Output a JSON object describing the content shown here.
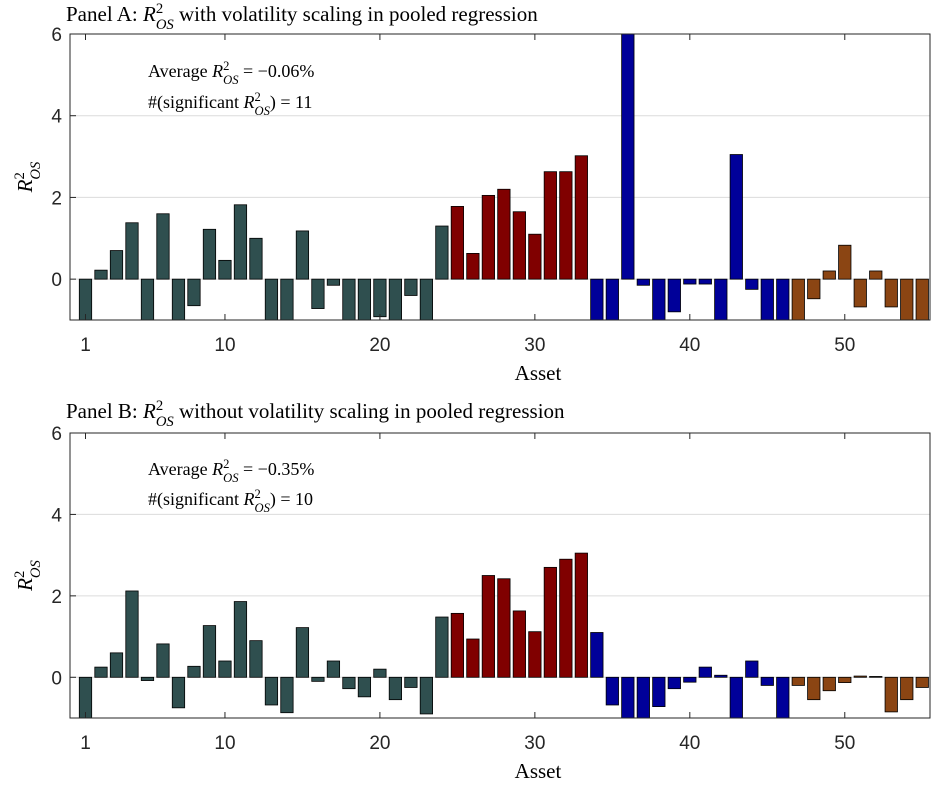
{
  "chart_data": [
    {
      "type": "bar",
      "title": [
        {
          "t": "Panel A: "
        },
        {
          "t": "R",
          "style": "italic"
        },
        {
          "t": "2",
          "pos": "sup"
        },
        {
          "t": "OS",
          "pos": "sub",
          "style": "italic"
        },
        {
          "t": " with volatility scaling in pooled regression"
        }
      ],
      "annotations": [
        [
          {
            "t": "Average "
          },
          {
            "t": "R",
            "style": "italic"
          },
          {
            "t": "2",
            "pos": "sup"
          },
          {
            "t": "OS",
            "pos": "sub",
            "style": "italic"
          },
          {
            "t": " = −0.06%"
          }
        ],
        [
          {
            "t": "#(significant "
          },
          {
            "t": "R",
            "style": "italic"
          },
          {
            "t": "2",
            "pos": "sup"
          },
          {
            "t": "OS",
            "pos": "sub",
            "style": "italic"
          },
          {
            "t": ") = 11"
          }
        ]
      ],
      "ylabel": [
        {
          "t": "R",
          "style": "italic"
        },
        {
          "t": "2",
          "pos": "sup"
        },
        {
          "t": "OS",
          "pos": "sub",
          "style": "italic"
        }
      ],
      "xlabel": "Asset",
      "xlim": [
        0,
        55.5
      ],
      "xticks": [
        1,
        10,
        20,
        30,
        40,
        50
      ],
      "ylim": [
        -1,
        6
      ],
      "yticks": [
        0,
        2,
        4,
        6
      ],
      "grid": true,
      "series": [
        {
          "color": "#2f4f4f",
          "x": [
            1,
            2,
            3,
            4,
            5,
            6,
            7,
            8,
            9,
            10,
            11,
            12,
            13,
            14,
            15,
            16,
            17,
            18,
            19,
            20,
            21,
            22,
            23,
            24
          ],
          "values": [
            -1,
            0.22,
            0.7,
            1.38,
            -1,
            1.6,
            -1,
            -0.65,
            1.22,
            0.46,
            1.82,
            1.0,
            -1,
            -1,
            1.18,
            -0.72,
            -0.15,
            -1,
            -1,
            -0.92,
            -1,
            -0.4,
            -1,
            1.3
          ]
        },
        {
          "color": "#800000",
          "x": [
            25,
            26,
            27,
            28,
            29,
            30,
            31,
            32,
            33
          ],
          "values": [
            1.78,
            0.63,
            2.05,
            2.2,
            1.65,
            1.1,
            2.63,
            2.63,
            3.02
          ]
        },
        {
          "color": "#000099",
          "x": [
            34,
            35,
            36,
            37,
            38,
            39,
            40,
            41,
            42,
            43,
            44,
            45,
            46
          ],
          "values": [
            -1,
            -1,
            6,
            -0.15,
            -1,
            -0.8,
            -0.12,
            -0.12,
            -1,
            3.05,
            -0.25,
            -1,
            -1
          ]
        },
        {
          "color": "#8b4513",
          "x": [
            47,
            48,
            49,
            50,
            51,
            52,
            53,
            54,
            55
          ],
          "values": [
            -1,
            -0.48,
            0.2,
            0.83,
            -0.68,
            0.2,
            -0.68,
            -1,
            -1
          ]
        }
      ]
    },
    {
      "type": "bar",
      "title": [
        {
          "t": "Panel B: "
        },
        {
          "t": "R",
          "style": "italic"
        },
        {
          "t": "2",
          "pos": "sup"
        },
        {
          "t": "OS",
          "pos": "sub",
          "style": "italic"
        },
        {
          "t": " without volatility scaling in pooled regression"
        }
      ],
      "annotations": [
        [
          {
            "t": "Average "
          },
          {
            "t": "R",
            "style": "italic"
          },
          {
            "t": "2",
            "pos": "sup"
          },
          {
            "t": "OS",
            "pos": "sub",
            "style": "italic"
          },
          {
            "t": " = −0.35%"
          }
        ],
        [
          {
            "t": "#(significant "
          },
          {
            "t": "R",
            "style": "italic"
          },
          {
            "t": "2",
            "pos": "sup"
          },
          {
            "t": "OS",
            "pos": "sub",
            "style": "italic"
          },
          {
            "t": ") = 10"
          }
        ]
      ],
      "ylabel": [
        {
          "t": "R",
          "style": "italic"
        },
        {
          "t": "2",
          "pos": "sup"
        },
        {
          "t": "OS",
          "pos": "sub",
          "style": "italic"
        }
      ],
      "xlabel": "Asset",
      "xlim": [
        0,
        55.5
      ],
      "xticks": [
        1,
        10,
        20,
        30,
        40,
        50
      ],
      "ylim": [
        -1,
        6
      ],
      "yticks": [
        0,
        2,
        4,
        6
      ],
      "grid": true,
      "series": [
        {
          "color": "#2f4f4f",
          "x": [
            1,
            2,
            3,
            4,
            5,
            6,
            7,
            8,
            9,
            10,
            11,
            12,
            13,
            14,
            15,
            16,
            17,
            18,
            19,
            20,
            21,
            22,
            23,
            24
          ],
          "values": [
            -1,
            0.25,
            0.6,
            2.12,
            -0.08,
            0.82,
            -0.75,
            0.27,
            1.27,
            0.4,
            1.86,
            0.9,
            -0.68,
            -0.87,
            1.22,
            -0.1,
            0.4,
            -0.28,
            -0.48,
            0.2,
            -0.55,
            -0.25,
            -0.9,
            1.48
          ]
        },
        {
          "color": "#800000",
          "x": [
            25,
            26,
            27,
            28,
            29,
            30,
            31,
            32,
            33
          ],
          "values": [
            1.57,
            0.94,
            2.5,
            2.42,
            1.63,
            1.12,
            2.7,
            2.9,
            3.05
          ]
        },
        {
          "color": "#000099",
          "x": [
            34,
            35,
            36,
            37,
            38,
            39,
            40,
            41,
            42,
            43,
            44,
            45,
            46
          ],
          "values": [
            1.1,
            -0.68,
            -1,
            -1,
            -0.72,
            -0.28,
            -0.12,
            0.25,
            0.05,
            -1,
            0.4,
            -0.2,
            -1
          ]
        },
        {
          "color": "#8b4513",
          "x": [
            47,
            48,
            49,
            50,
            51,
            52,
            53,
            54,
            55
          ],
          "values": [
            -0.2,
            -0.55,
            -0.33,
            -0.13,
            0.03,
            0.02,
            -0.85,
            -0.55,
            -0.25
          ]
        }
      ]
    }
  ]
}
